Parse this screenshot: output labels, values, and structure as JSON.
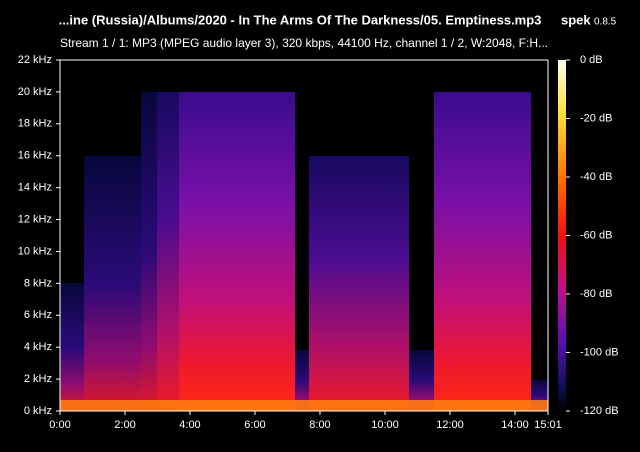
{
  "chart_data": {
    "type": "spectrogram",
    "title": "...ine (Russia)/Albums/2020 - In The Arms Of The Darkness/05. Emptiness.mp3",
    "subtitle": "Stream 1 / 1: MP3 (MPEG audio layer 3), 320 kbps, 44100 Hz, channel 1 / 2, W:2048, F:H...",
    "app_name": "spek",
    "app_version": "0.8.5",
    "xlim": [
      0,
      901
    ],
    "xticks": [
      {
        "value": 0,
        "label": "0:00"
      },
      {
        "value": 120,
        "label": "2:00"
      },
      {
        "value": 240,
        "label": "4:00"
      },
      {
        "value": 360,
        "label": "6:00"
      },
      {
        "value": 480,
        "label": "8:00"
      },
      {
        "value": 600,
        "label": "10:00"
      },
      {
        "value": 720,
        "label": "12:00"
      },
      {
        "value": 840,
        "label": "14:00"
      },
      {
        "value": 901,
        "label": "15:01"
      }
    ],
    "ylim": [
      0,
      22
    ],
    "yticks": [
      {
        "value": 0,
        "label": "0 kHz"
      },
      {
        "value": 2,
        "label": "2 kHz"
      },
      {
        "value": 4,
        "label": "4 kHz"
      },
      {
        "value": 6,
        "label": "6 kHz"
      },
      {
        "value": 8,
        "label": "8 kHz"
      },
      {
        "value": 10,
        "label": "10 kHz"
      },
      {
        "value": 12,
        "label": "12 kHz"
      },
      {
        "value": 14,
        "label": "14 kHz"
      },
      {
        "value": 16,
        "label": "16 kHz"
      },
      {
        "value": 18,
        "label": "18 kHz"
      },
      {
        "value": 20,
        "label": "20 kHz"
      },
      {
        "value": 22,
        "label": "22 kHz"
      }
    ],
    "clim": [
      -120,
      0
    ],
    "cticks": [
      {
        "value": 0,
        "label": "0 dB"
      },
      {
        "value": -20,
        "label": "-20 dB"
      },
      {
        "value": -40,
        "label": "-40 dB"
      },
      {
        "value": -60,
        "label": "-60 dB"
      },
      {
        "value": -80,
        "label": "-80 dB"
      },
      {
        "value": -100,
        "label": "-100 dB"
      },
      {
        "value": -120,
        "label": "-120 dB"
      }
    ]
  }
}
